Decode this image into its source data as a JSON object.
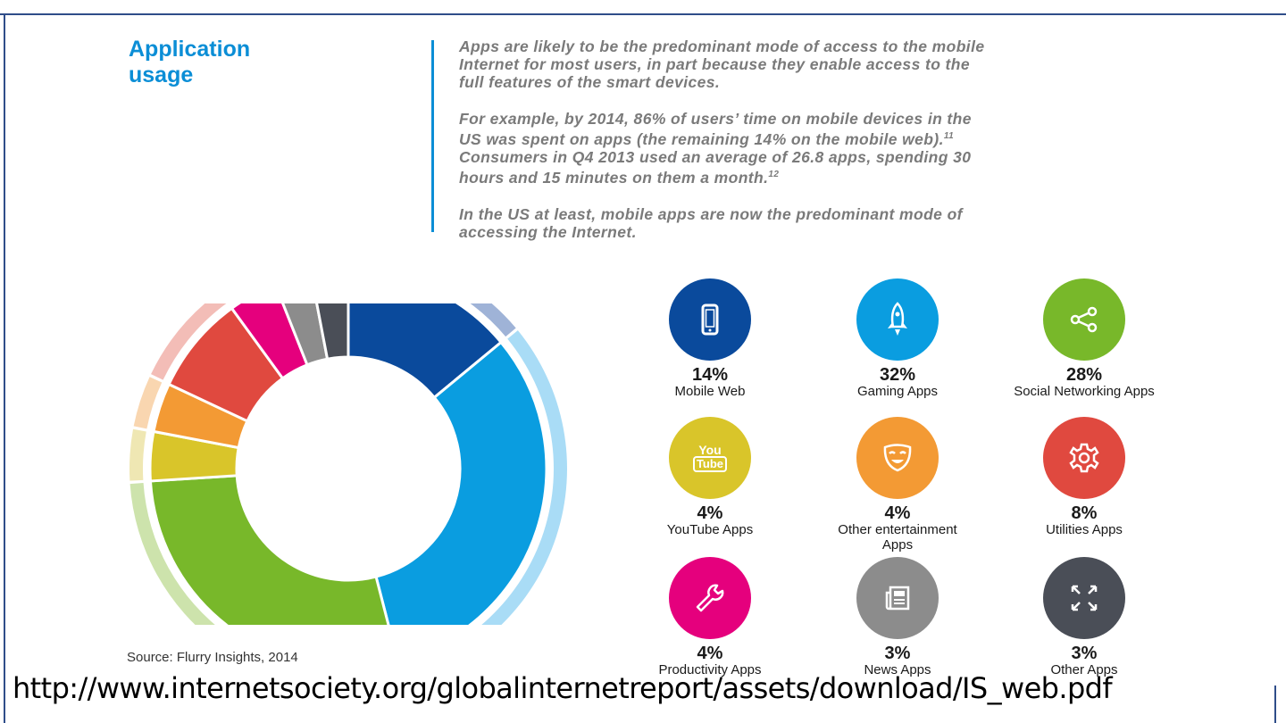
{
  "heading": {
    "line1": "Application",
    "line2": "usage"
  },
  "paragraphs": [
    {
      "text": "Apps are likely to be the predominant mode of access to the mobile\nInternet for most users, in part because they enable access to the\nfull features of the smart devices."
    },
    {
      "text": "For example, by 2014, 86% of users’ time on mobile devices in the\nUS was spent on apps (the remaining 14% on the mobile web).",
      "sup": "11",
      "text2": "\nConsumers in Q4 2013 used an average of 26.8 apps, spending 30\nhours and 15 minutes on them a month.",
      "sup2": "12"
    },
    {
      "text": "In the US at least, mobile apps are now the predominant mode of\naccessing the Internet."
    }
  ],
  "source": "Source: Flurry Insights, 2014",
  "url": "http://www.internetsociety.org/globalinternetreport/assets/download/IS_web.pdf",
  "chart_data": {
    "type": "pie",
    "categories": [
      "Mobile Web",
      "Gaming Apps",
      "Social Networking Apps",
      "YouTube Apps",
      "Other entertainment Apps",
      "Utilities Apps",
      "Productivity Apps",
      "News Apps",
      "Other Apps"
    ],
    "values": [
      14,
      32,
      28,
      4,
      4,
      8,
      4,
      3,
      3
    ],
    "colors": [
      "#0a4a9c",
      "#0a9de0",
      "#78b82a",
      "#d9c52a",
      "#f39a34",
      "#e0493f",
      "#e5007d",
      "#8c8c8c",
      "#4a4e57"
    ],
    "light_colors": [
      "#9fb3d7",
      "#a9dcf6",
      "#cde3ac",
      "#efe7b3",
      "#f9d6b0",
      "#f3bdb7",
      "#f4a6cf",
      "#d3d3d3",
      "#bdbfc4"
    ],
    "labels": [
      "14%",
      "32%",
      "28%",
      "4%",
      "4%",
      "8%",
      "4%",
      "3%",
      "3%"
    ]
  },
  "stats": [
    {
      "pct": "14%",
      "label": "Mobile Web",
      "icon": "mobile-phone-icon",
      "color": "#0a4a9c"
    },
    {
      "pct": "32%",
      "label": "Gaming Apps",
      "icon": "rocket-icon",
      "color": "#0a9de0"
    },
    {
      "pct": "28%",
      "label": "Social Networking Apps",
      "icon": "share-icon",
      "color": "#78b82a"
    },
    {
      "pct": "4%",
      "label": "YouTube Apps",
      "icon": "youtube-icon",
      "color": "#d9c52a",
      "icon_line1": "You",
      "icon_line2": "Tube"
    },
    {
      "pct": "4%",
      "label": "Other entertainment\nApps",
      "icon": "mask-icon",
      "color": "#f39a34"
    },
    {
      "pct": "8%",
      "label": "Utilities Apps",
      "icon": "gear-icon",
      "color": "#e0493f"
    },
    {
      "pct": "4%",
      "label": "Productivity Apps",
      "icon": "wrench-icon",
      "color": "#e5007d"
    },
    {
      "pct": "3%",
      "label": "News Apps",
      "icon": "newspaper-icon",
      "color": "#8c8c8c"
    },
    {
      "pct": "3%",
      "label": "Other Apps",
      "icon": "expand-arrows-icon",
      "color": "#4a4e57"
    }
  ]
}
